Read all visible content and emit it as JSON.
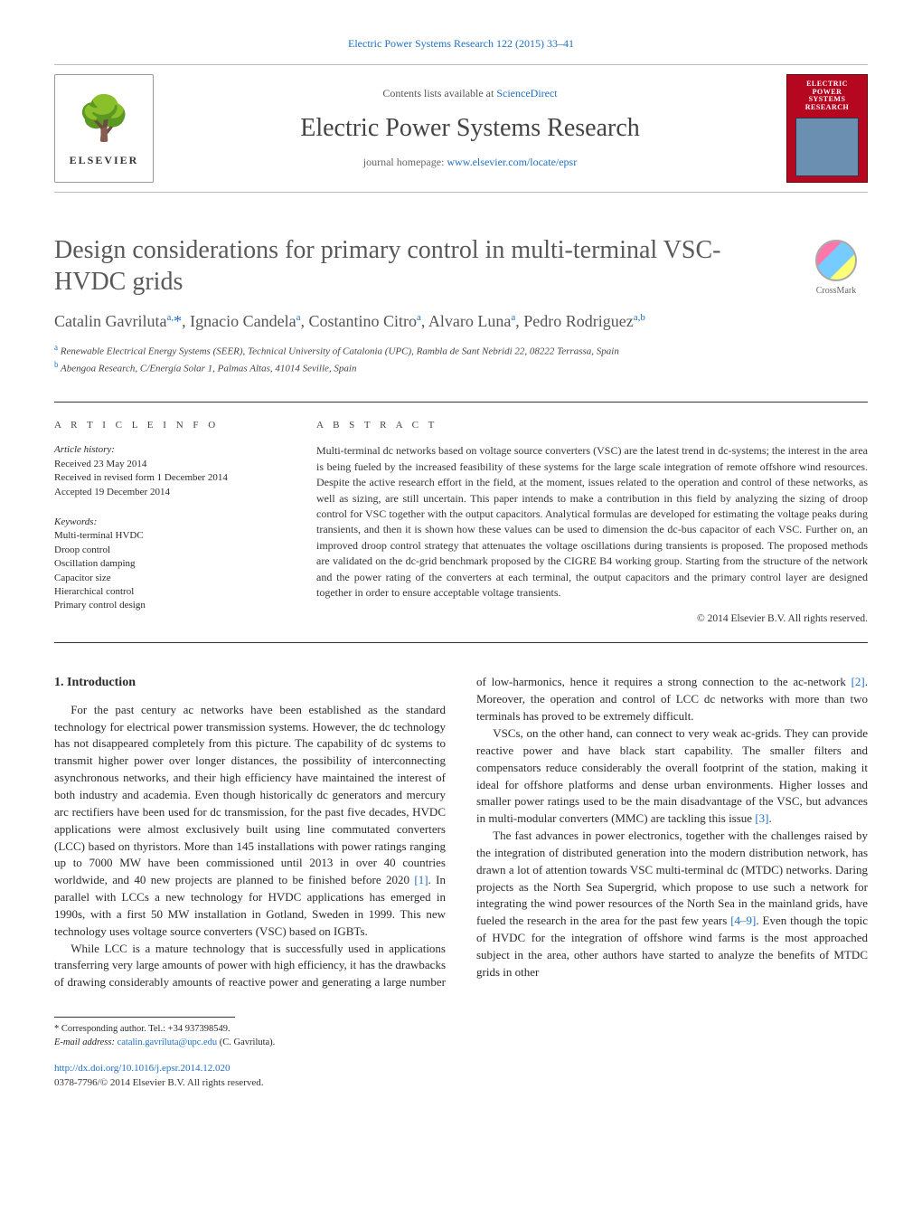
{
  "journal": {
    "citation": "Electric Power Systems Research 122 (2015) 33–41",
    "contents_prefix": "Contents lists available at ",
    "contents_link": "ScienceDirect",
    "name": "Electric Power Systems Research",
    "homepage_prefix": "journal homepage: ",
    "homepage_url": "www.elsevier.com/locate/epsr",
    "publisher_logo_text": "ELSEVIER",
    "cover_label": "ELECTRIC POWER SYSTEMS RESEARCH"
  },
  "crossmark": {
    "label": "CrossMark"
  },
  "paper": {
    "title": "Design considerations for primary control in multi-terminal VSC-HVDC grids",
    "authors_html": "Catalin Gavriluta<sup>a,</sup><span class='star'>*</span>, Ignacio Candela<sup>a</sup>, Costantino Citro<sup>a</sup>, Alvaro Luna<sup>a</sup>, Pedro Rodriguez<sup>a,b</sup>",
    "affiliations": [
      {
        "key": "a",
        "text": "Renewable Electrical Energy Systems (SEER), Technical University of Catalonia (UPC), Rambla de Sant Nebridi 22, 08222 Terrassa, Spain"
      },
      {
        "key": "b",
        "text": "Abengoa Research, C/Energía Solar 1, Palmas Altas, 41014 Seville, Spain"
      }
    ]
  },
  "article_info": {
    "heading": "a r t i c l e   i n f o",
    "history_label": "Article history:",
    "received": "Received 23 May 2014",
    "revised": "Received in revised form 1 December 2014",
    "accepted": "Accepted 19 December 2014",
    "keywords_label": "Keywords:",
    "keywords": [
      "Multi-terminal HVDC",
      "Droop control",
      "Oscillation damping",
      "Capacitor size",
      "Hierarchical control",
      "Primary control design"
    ]
  },
  "abstract": {
    "heading": "a b s t r a c t",
    "body": "Multi-terminal dc networks based on voltage source converters (VSC) are the latest trend in dc-systems; the interest in the area is being fueled by the increased feasibility of these systems for the large scale integration of remote offshore wind resources. Despite the active research effort in the field, at the moment, issues related to the operation and control of these networks, as well as sizing, are still uncertain. This paper intends to make a contribution in this field by analyzing the sizing of droop control for VSC together with the output capacitors. Analytical formulas are developed for estimating the voltage peaks during transients, and then it is shown how these values can be used to dimension the dc-bus capacitor of each VSC. Further on, an improved droop control strategy that attenuates the voltage oscillations during transients is proposed. The proposed methods are validated on the dc-grid benchmark proposed by the CIGRE B4 working group. Starting from the structure of the network and the power rating of the converters at each terminal, the output capacitors and the primary control layer are designed together in order to ensure acceptable voltage transients.",
    "copyright": "© 2014 Elsevier B.V. All rights reserved."
  },
  "body": {
    "section_number": "1.",
    "section_title": "Introduction",
    "paragraphs": [
      "For the past century ac networks have been established as the standard technology for electrical power transmission systems. However, the dc technology has not disappeared completely from this picture. The capability of dc systems to transmit higher power over longer distances, the possibility of interconnecting asynchronous networks, and their high efficiency have maintained the interest of both industry and academia. Even though historically dc generators and mercury arc rectifiers have been used for dc transmission, for the past five decades, HVDC applications were almost exclusively built using line commutated converters (LCC) based on thyristors. More than 145 installations with power ratings ranging up to 7000 MW have been commissioned until 2013 in over 40 countries worldwide, and 40 new projects are planned to be finished before 2020 <span class='ref'>[1]</span>. In parallel with LCCs a new technology for HVDC applications has emerged in 1990s, with a first 50 MW installation in Gotland, Sweden in 1999. This new technology uses voltage source converters (VSC) based on IGBTs.",
      "While LCC is a mature technology that is successfully used in applications transferring very large amounts of power with high efficiency, it has the drawbacks of drawing considerably amounts of reactive power and generating a large number of low-harmonics, hence it requires a strong connection to the ac-network <span class='ref'>[2]</span>. Moreover, the operation and control of LCC dc networks with more than two terminals has proved to be extremely difficult.",
      "VSCs, on the other hand, can connect to very weak ac-grids. They can provide reactive power and have black start capability. The smaller filters and compensators reduce considerably the overall footprint of the station, making it ideal for offshore platforms and dense urban environments. Higher losses and smaller power ratings used to be the main disadvantage of the VSC, but advances in multi-modular converters (MMC) are tackling this issue <span class='ref'>[3]</span>.",
      "The fast advances in power electronics, together with the challenges raised by the integration of distributed generation into the modern distribution network, has drawn a lot of attention towards VSC multi-terminal dc (MTDC) networks. Daring projects as the North Sea Supergrid, which propose to use such a network for integrating the wind power resources of the North Sea in the mainland grids, have fueled the research in the area for the past few years <span class='ref'>[4–9]</span>. Even though the topic of HVDC for the integration of offshore wind farms is the most approached subject in the area, other authors have started to analyze the benefits of MTDC grids in other"
    ]
  },
  "footer": {
    "corr_label": "* Corresponding author. Tel.: +34 937398549.",
    "email_label": "E-mail address:",
    "email": "catalin.gavriluta@upc.edu",
    "email_paren": "(C. Gavriluta).",
    "doi_url": "http://dx.doi.org/10.1016/j.epsr.2014.12.020",
    "issn_line": "0378-7796/© 2014 Elsevier B.V. All rights reserved."
  },
  "colors": {
    "link": "#1e6fc4",
    "text": "#2a2a2a",
    "muted": "#555555",
    "rule": "#333333",
    "cover_bg": "#b50720"
  }
}
